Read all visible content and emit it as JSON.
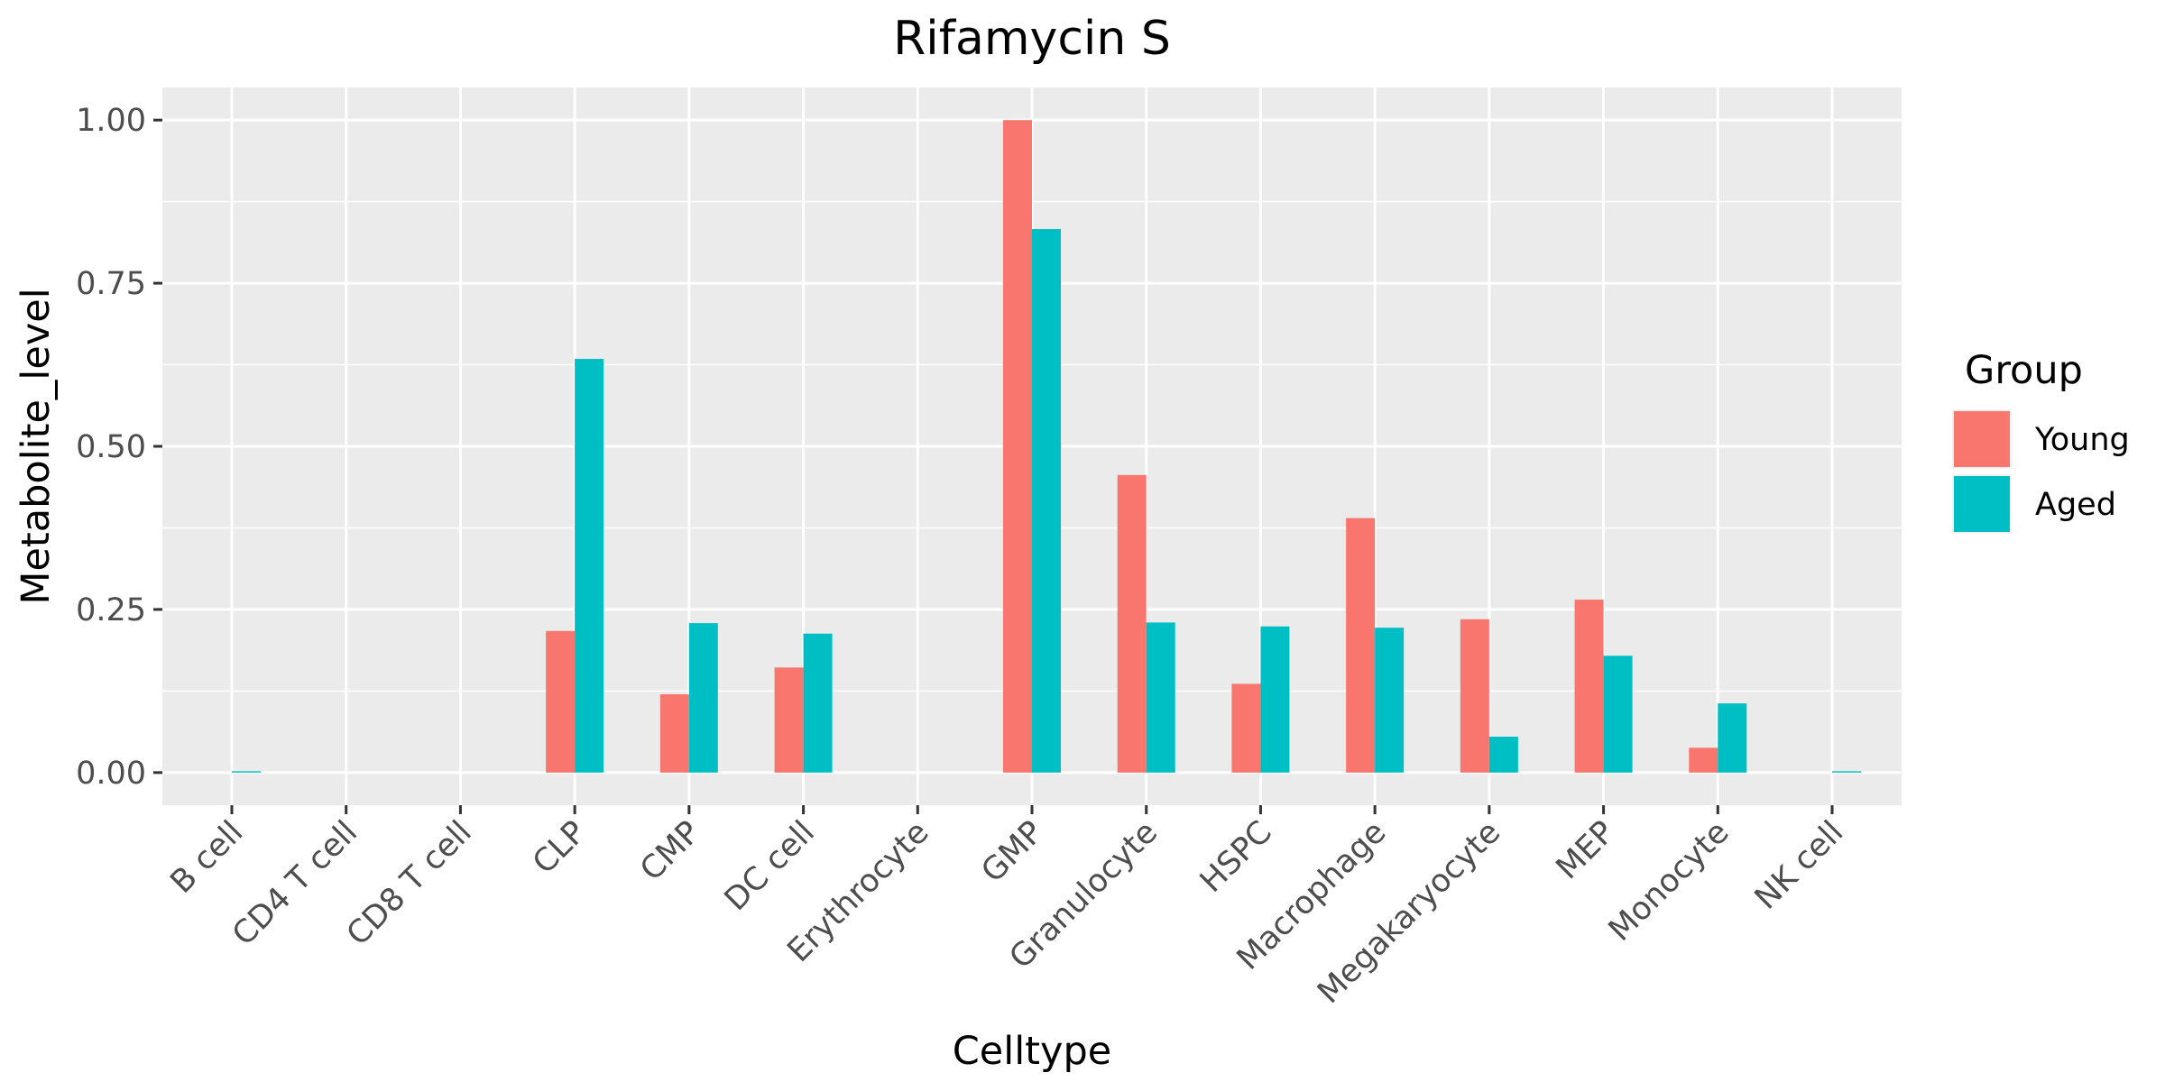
{
  "chart_data": {
    "type": "bar",
    "title": "Rifamycin S",
    "xlabel": "Celltype",
    "ylabel": "Metabolite_level",
    "categories": [
      "B cell",
      "CD4 T cell",
      "CD8 T cell",
      "CLP",
      "CMP",
      "DC cell",
      "Erythrocyte",
      "GMP",
      "Granulocyte",
      "HSPC",
      "Macrophage",
      "Megakaryocyte",
      "MEP",
      "Monocyte",
      "NK cell"
    ],
    "series": [
      {
        "name": "Young",
        "color": "#F8766D",
        "values": [
          0,
          0,
          0,
          0.217,
          0.12,
          0.161,
          0,
          1.0,
          0.456,
          0.136,
          0.39,
          0.235,
          0.265,
          0.038,
          0
        ]
      },
      {
        "name": "Aged",
        "color": "#00BFC4",
        "values": [
          0.002,
          0,
          0,
          0.634,
          0.229,
          0.213,
          0,
          0.833,
          0.23,
          0.224,
          0.222,
          0.055,
          0.179,
          0.106,
          0.002
        ]
      }
    ],
    "ylim": [
      -0.05,
      1.05
    ],
    "yticks": [
      0,
      0.25,
      0.5,
      0.75,
      1.0
    ],
    "ytick_labels": [
      "0.00",
      "0.25",
      "0.50",
      "0.75",
      "1.00"
    ],
    "grid": true,
    "legend": {
      "title": "Group",
      "position": "right"
    },
    "panel_background": "#EBEBEB"
  }
}
